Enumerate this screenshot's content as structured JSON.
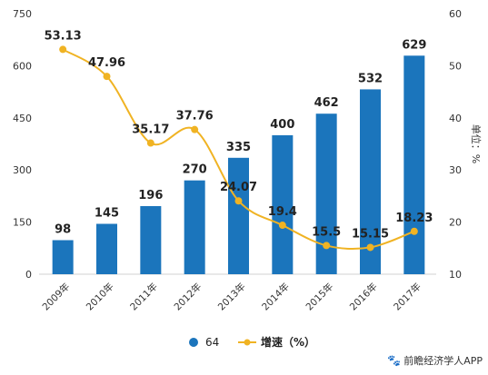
{
  "chart_data": {
    "type": "bar",
    "categories": [
      "2009年",
      "2010年",
      "2011年",
      "2012年",
      "2013年",
      "2014年",
      "2015年",
      "2016年",
      "2017年"
    ],
    "series": [
      {
        "name": "64",
        "type": "bar",
        "axis": "left",
        "values": [
          98,
          145,
          196,
          270,
          335,
          400,
          462,
          532,
          629
        ],
        "labels": [
          "98",
          "145",
          "196",
          "270",
          "335",
          "400",
          "462",
          "532",
          "629"
        ],
        "color": "#1b75bc"
      },
      {
        "name": "增速（%）",
        "type": "line",
        "axis": "right",
        "values": [
          53.13,
          47.96,
          35.17,
          37.76,
          24.07,
          19.4,
          15.5,
          15.15,
          18.23
        ],
        "labels": [
          "53.13",
          "47.96",
          "35.17",
          "37.76",
          "24.07",
          "19.4",
          "15.5",
          "15.15",
          "18.23"
        ],
        "color": "#f0b323"
      }
    ],
    "y_left": {
      "min": 0,
      "max": 750,
      "ticks": [
        "0",
        "150",
        "300",
        "450",
        "600",
        "750"
      ]
    },
    "y_right": {
      "min": 10,
      "max": 60,
      "ticks": [
        "10",
        "20",
        "30",
        "40",
        "50",
        "60"
      ],
      "label": "单位：%"
    },
    "legend": {
      "placement": "bottom",
      "items": [
        {
          "label": "64",
          "marker": "circle",
          "color": "#1b75bc"
        },
        {
          "label": "增速（%）",
          "marker": "line-dot",
          "color": "#f0b323"
        }
      ]
    },
    "grid": false
  },
  "credit": {
    "icon": "paw-icon",
    "text": "前瞻经济学人APP"
  }
}
